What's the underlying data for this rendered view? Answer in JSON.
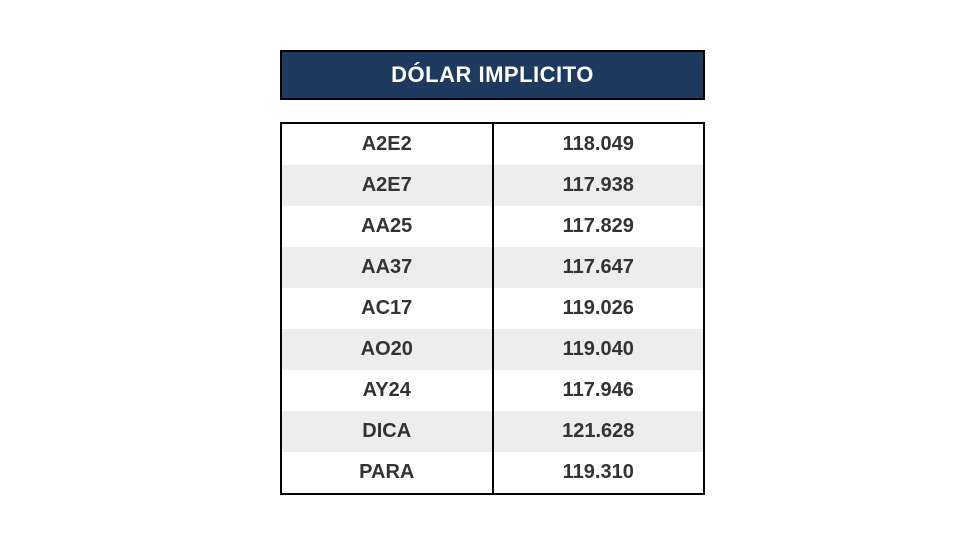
{
  "title": "DÓLAR IMPLICITO",
  "title_bg": "#1f3a5f",
  "title_color": "#ffffff",
  "title_fontsize": 22,
  "border_color": "#000000",
  "row_bg_odd": "#ffffff",
  "row_bg_even": "#ededed",
  "cell_fontsize": 20,
  "cell_color": "#333333",
  "table": {
    "columns": [
      "ticker",
      "value"
    ],
    "rows": [
      {
        "ticker": "A2E2",
        "value": "118.049"
      },
      {
        "ticker": "A2E7",
        "value": "117.938"
      },
      {
        "ticker": "AA25",
        "value": "117.829"
      },
      {
        "ticker": "AA37",
        "value": "117.647"
      },
      {
        "ticker": "AC17",
        "value": "119.026"
      },
      {
        "ticker": "AO20",
        "value": "119.040"
      },
      {
        "ticker": "AY24",
        "value": "117.946"
      },
      {
        "ticker": "DICA",
        "value": "121.628"
      },
      {
        "ticker": "PARA",
        "value": "119.310"
      }
    ]
  }
}
